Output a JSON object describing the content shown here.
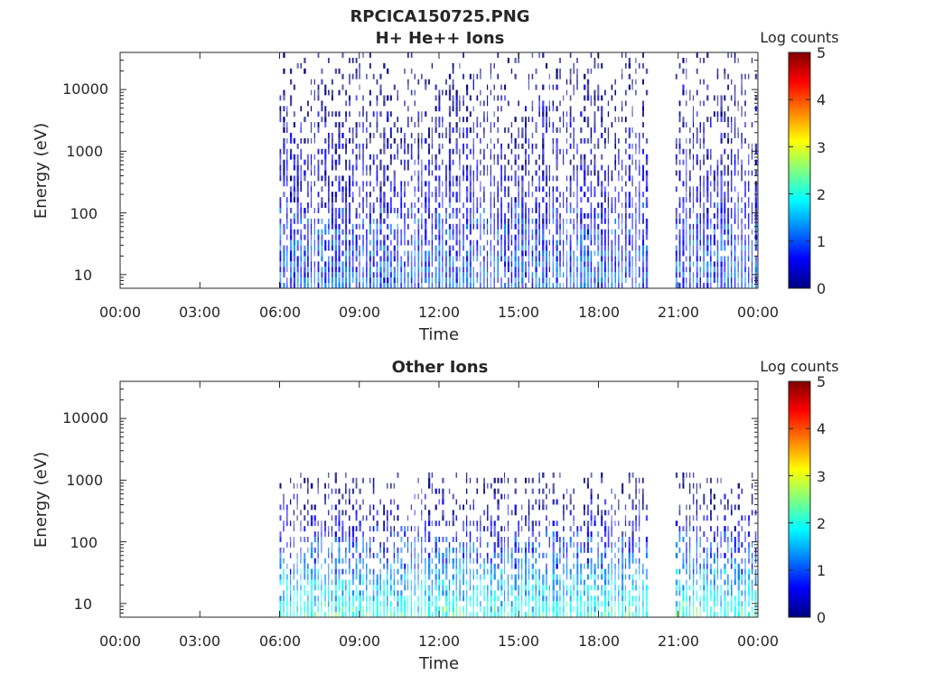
{
  "figure_title": "RPCICA150725.PNG",
  "colormap": [
    "#00007f",
    "#0000ff",
    "#0080ff",
    "#00ffff",
    "#80ff80",
    "#ffff00",
    "#ff8000",
    "#ff0000",
    "#7f0000"
  ],
  "chart_data": [
    {
      "type": "heatmap",
      "title": "H+ He++ Ions",
      "xlabel": "Time",
      "ylabel": "Energy (eV)",
      "yscale": "log",
      "xlim": [
        "00:00",
        "24:00"
      ],
      "ylim": [
        6,
        40000
      ],
      "x_tick_labels": [
        "00:00",
        "03:00",
        "06:00",
        "09:00",
        "12:00",
        "15:00",
        "18:00",
        "21:00",
        "00:00"
      ],
      "y_tick_values": [
        10,
        100,
        1000,
        10000
      ],
      "y_tick_labels": [
        "10",
        "100",
        "1000",
        "10000"
      ],
      "colorbar": {
        "label": "Log counts",
        "range": [
          0,
          5
        ],
        "tick_labels": [
          "0",
          "1",
          "2",
          "3",
          "4",
          "5"
        ]
      },
      "data_intervals_hours": [
        [
          6.0,
          19.85
        ],
        [
          20.9,
          24.0
        ]
      ],
      "energy_extent_eV": [
        6,
        35000
      ],
      "typical_log_counts": [
        0,
        1
      ],
      "grid": false
    },
    {
      "type": "heatmap",
      "title": "Other Ions",
      "xlabel": "Time",
      "ylabel": "Energy (eV)",
      "yscale": "log",
      "xlim": [
        "00:00",
        "24:00"
      ],
      "ylim": [
        6,
        40000
      ],
      "x_tick_labels": [
        "00:00",
        "03:00",
        "06:00",
        "09:00",
        "12:00",
        "15:00",
        "18:00",
        "21:00",
        "00:00"
      ],
      "y_tick_values": [
        10,
        100,
        1000,
        10000
      ],
      "y_tick_labels": [
        "10",
        "100",
        "1000",
        "10000"
      ],
      "colorbar": {
        "label": "Log counts",
        "range": [
          0,
          5
        ],
        "tick_labels": [
          "0",
          "1",
          "2",
          "3",
          "4",
          "5"
        ]
      },
      "data_intervals_hours": [
        [
          6.0,
          19.85
        ],
        [
          20.9,
          24.0
        ]
      ],
      "energy_extent_eV": [
        6,
        1300
      ],
      "typical_log_counts": [
        0,
        2
      ],
      "grid": false
    }
  ]
}
